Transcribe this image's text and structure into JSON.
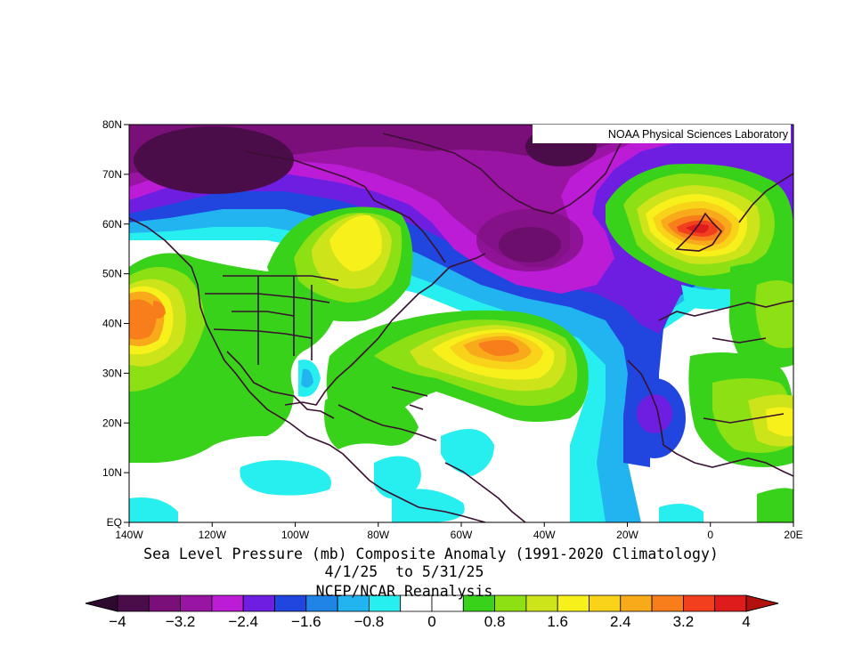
{
  "credit": "NOAA Physical Sciences Laboratory",
  "title_line1": "Sea Level Pressure (mb) Composite Anomaly (1991-2020 Climatology)",
  "title_line2": "4/1/25  to 5/31/25",
  "title_line3": "NCEP/NCAR Reanalysis",
  "lat_labels": [
    "80N",
    "70N",
    "60N",
    "50N",
    "40N",
    "30N",
    "20N",
    "10N",
    "EQ"
  ],
  "lon_labels": [
    "140W",
    "120W",
    "100W",
    "80W",
    "60W",
    "40W",
    "20W",
    "0",
    "20E"
  ],
  "colorbar": {
    "labels": [
      "−4",
      "−3.2",
      "−2.4",
      "−1.6",
      "−0.8",
      "0",
      "0.8",
      "1.6",
      "2.4",
      "3.2",
      "4"
    ],
    "colors": [
      "#4b0c4a",
      "#7a0f7a",
      "#9a14a4",
      "#bc1cd6",
      "#6e1ee0",
      "#2146e0",
      "#1f84e6",
      "#21b4f0",
      "#27efef",
      "#ffffff",
      "#ffffff",
      "#38d21a",
      "#8ce014",
      "#cde41a",
      "#f7f01a",
      "#f9d21a",
      "#f9aa1a",
      "#f77e1a",
      "#f2401e",
      "#de1c1c"
    ],
    "low_cap_color": "#2e0a30",
    "high_cap_color": "#b31010"
  },
  "map": {
    "lon_range": [
      -140,
      20
    ],
    "lat_range": [
      0,
      80
    ],
    "anomaly_centers": [
      {
        "region": "Canadian Arctic / Beaufort",
        "value": -4
      },
      {
        "region": "Labrador Sea",
        "value": -4
      },
      {
        "region": "NE Pacific",
        "value": 3.2
      },
      {
        "region": "Central Atlantic",
        "value": 3.2
      },
      {
        "region": "British Isles",
        "value": 4
      },
      {
        "region": "Canary Islands",
        "value": -2
      }
    ]
  }
}
